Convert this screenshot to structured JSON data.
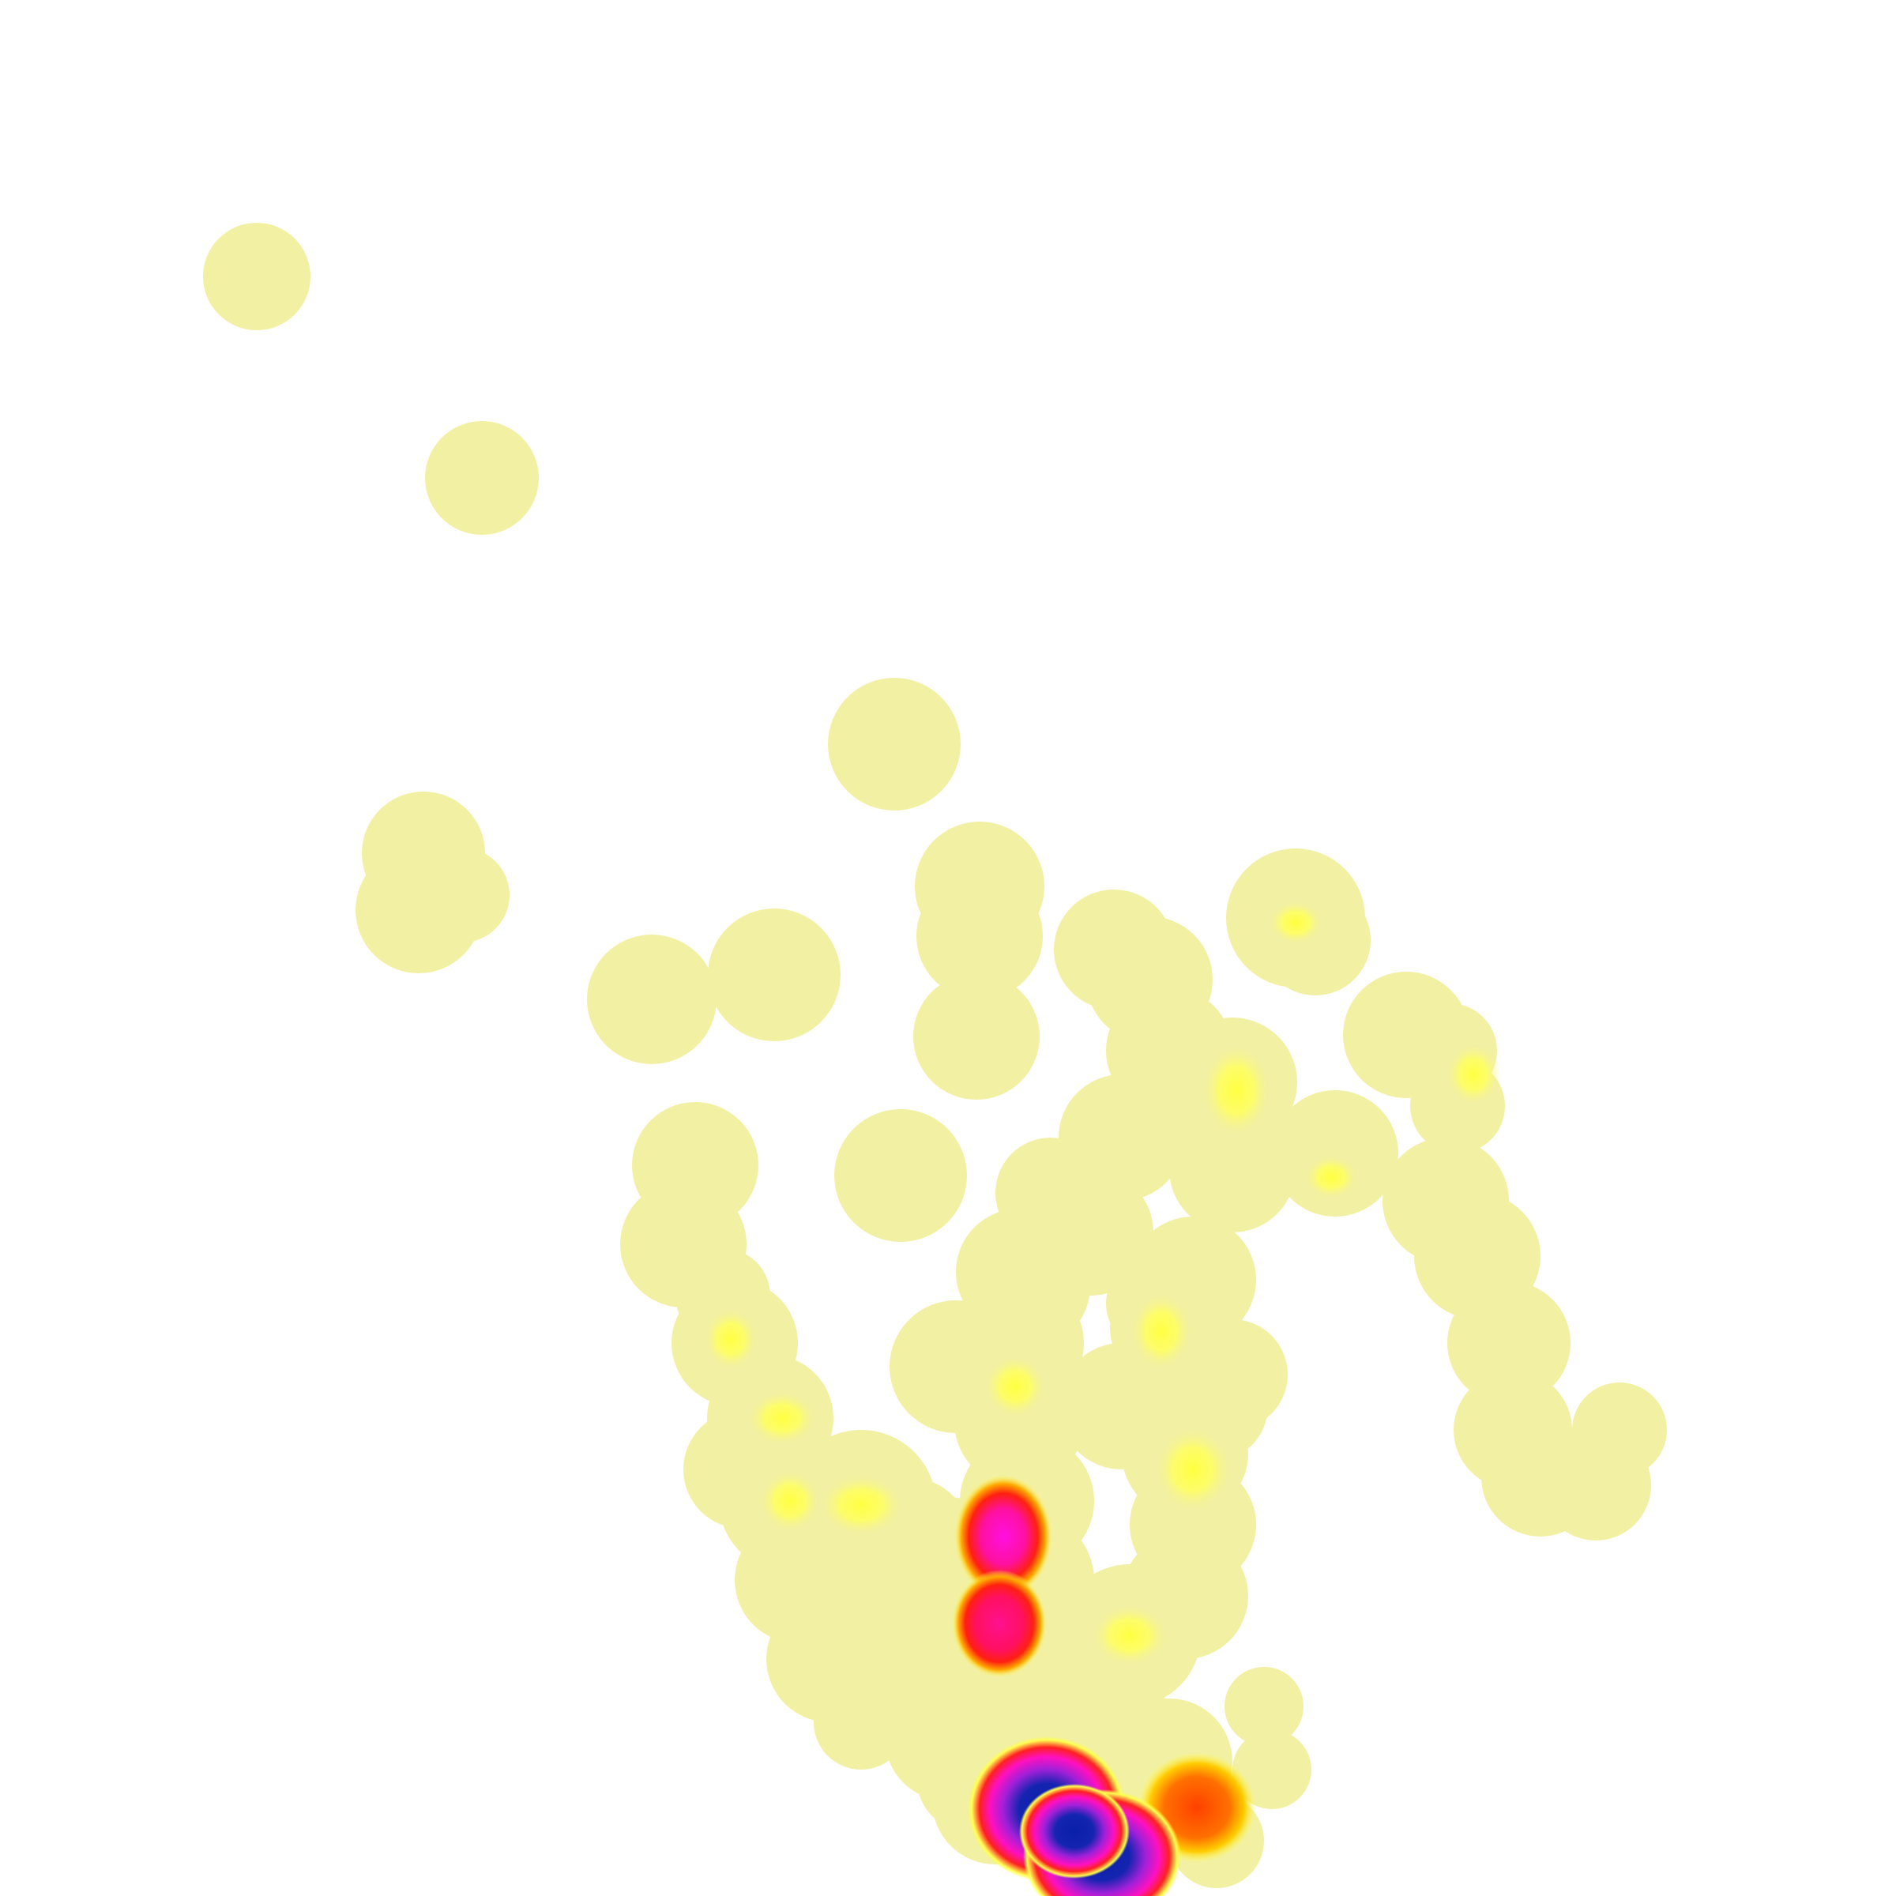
{
  "map": {
    "kind": "density heatmap",
    "background_color": "#ffffff",
    "base_fill_color": "#f2f0a3",
    "color_scale": [
      "#f2f0a3",
      "#ffff50",
      "#ff8800",
      "#ff1010",
      "#ff10d0",
      "#9a20d0",
      "#0a1fa8"
    ],
    "hotspots": [
      {
        "id": "hotspot-1",
        "level": "highest",
        "color": "#0a1fa8"
      },
      {
        "id": "hotspot-2",
        "level": "highest",
        "color": "#0a1fa8"
      },
      {
        "id": "hotspot-3",
        "level": "high",
        "color": "#ff10d0"
      },
      {
        "id": "hotspot-4",
        "level": "high",
        "color": "#ff1080"
      },
      {
        "id": "hotspot-5",
        "level": "medium",
        "color": "#ff5500"
      }
    ]
  }
}
